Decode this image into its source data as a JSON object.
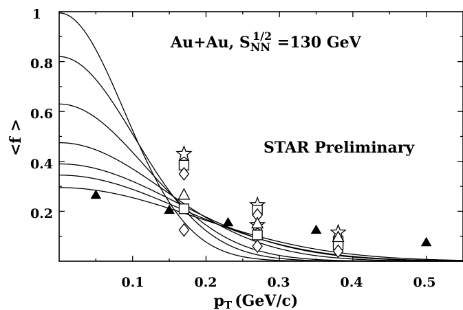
{
  "chart_data": {
    "type": "line",
    "title": "",
    "xlabel": {
      "main": "p",
      "sub": "T",
      "unit": "(GeV/c)"
    },
    "ylabel": "<f >",
    "xlim": [
      0,
      0.55
    ],
    "ylim": [
      0,
      1.0
    ],
    "xticks": [
      0.1,
      0.2,
      0.3,
      0.4,
      0.5
    ],
    "yticks": [
      0.2,
      0.4,
      0.6,
      0.8,
      1.0
    ],
    "xtick_labels": [
      "0.1",
      "0.2",
      "0.3",
      "0.4",
      "0.5"
    ],
    "ytick_labels": [
      "0.2",
      "0.4",
      "0.6",
      "0.8",
      "1"
    ],
    "grid": false,
    "annotations": {
      "system": {
        "prefix": "Au+Au, S",
        "sub": "NN",
        "sup": "1/2",
        "suffix": " =130 GeV"
      },
      "preliminary": "STAR Preliminary"
    },
    "curves": [
      {
        "f0": 0.995,
        "a": 0.125
      },
      {
        "f0": 0.82,
        "a": 0.145
      },
      {
        "f0": 0.63,
        "a": 0.165
      },
      {
        "f0": 0.475,
        "a": 0.2
      },
      {
        "f0": 0.39,
        "a": 0.225
      },
      {
        "f0": 0.345,
        "a": 0.235
      },
      {
        "f0": 0.295,
        "a": 0.26
      }
    ],
    "markers": [
      {
        "shape": "star",
        "points": [
          [
            0.17,
            0.43
          ],
          [
            0.27,
            0.225
          ],
          [
            0.27,
            0.145
          ],
          [
            0.38,
            0.115
          ]
        ]
      },
      {
        "shape": "square",
        "points": [
          [
            0.17,
            0.385
          ],
          [
            0.17,
            0.21
          ],
          [
            0.27,
            0.205
          ],
          [
            0.27,
            0.105
          ],
          [
            0.38,
            0.08
          ],
          [
            0.38,
            0.065
          ]
        ]
      },
      {
        "shape": "diamond",
        "points": [
          [
            0.17,
            0.35
          ],
          [
            0.17,
            0.125
          ],
          [
            0.27,
            0.185
          ],
          [
            0.27,
            0.06
          ],
          [
            0.38,
            0.04
          ]
        ]
      },
      {
        "shape": "triangle",
        "points": [
          [
            0.17,
            0.265
          ],
          [
            0.27,
            0.15
          ],
          [
            0.38,
            0.095
          ]
        ]
      },
      {
        "shape": "triangle-filled",
        "points": [
          [
            0.05,
            0.265
          ],
          [
            0.15,
            0.205
          ],
          [
            0.23,
            0.155
          ],
          [
            0.35,
            0.125
          ],
          [
            0.5,
            0.075
          ]
        ]
      }
    ]
  }
}
